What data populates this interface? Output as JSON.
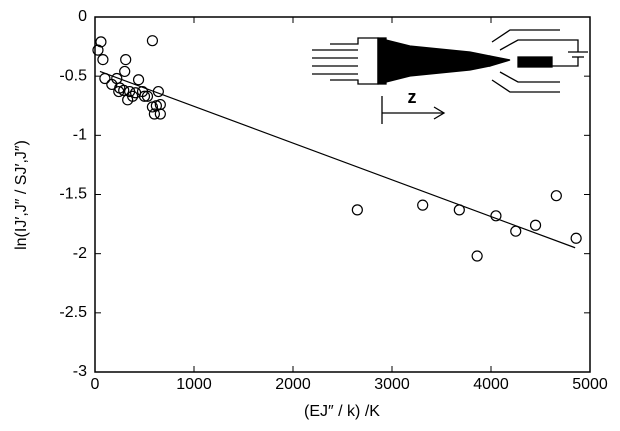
{
  "chart_data": {
    "type": "scatter",
    "x_label": "(EJ″ / k) /K",
    "y_label": "ln(IJ′,J″ / SJ′,J″)",
    "inset_label": "z",
    "marker_color": "#000000",
    "x": [
      30,
      60,
      80,
      100,
      170,
      220,
      250,
      290,
      240,
      300,
      310,
      350,
      380,
      330,
      410,
      440,
      480,
      500,
      530,
      580,
      600,
      620,
      660,
      580,
      640,
      660,
      2650,
      3310,
      3680,
      4050,
      3860,
      4250,
      4450,
      4660,
      4860
    ],
    "values": [
      -0.28,
      -0.21,
      -0.36,
      -0.52,
      -0.57,
      -0.52,
      -0.6,
      -0.62,
      -0.63,
      -0.46,
      -0.36,
      -0.63,
      -0.67,
      -0.7,
      -0.64,
      -0.53,
      -0.63,
      -0.67,
      -0.67,
      -0.76,
      -0.82,
      -0.75,
      -0.82,
      -0.2,
      -0.63,
      -0.74,
      -1.63,
      -1.59,
      -1.63,
      -1.68,
      -2.02,
      -1.81,
      -1.76,
      -1.51,
      -1.87
    ],
    "fit": {
      "x": [
        50,
        4850
      ],
      "y": [
        -0.46,
        -1.95
      ]
    },
    "xlim": [
      0,
      5000
    ],
    "ylim": [
      -3,
      0
    ],
    "xticks": [
      0,
      1000,
      2000,
      3000,
      4000,
      5000
    ],
    "yticks": [
      0,
      -0.5,
      -1,
      -1.5,
      -2,
      -2.5,
      -3
    ],
    "grid": false
  }
}
